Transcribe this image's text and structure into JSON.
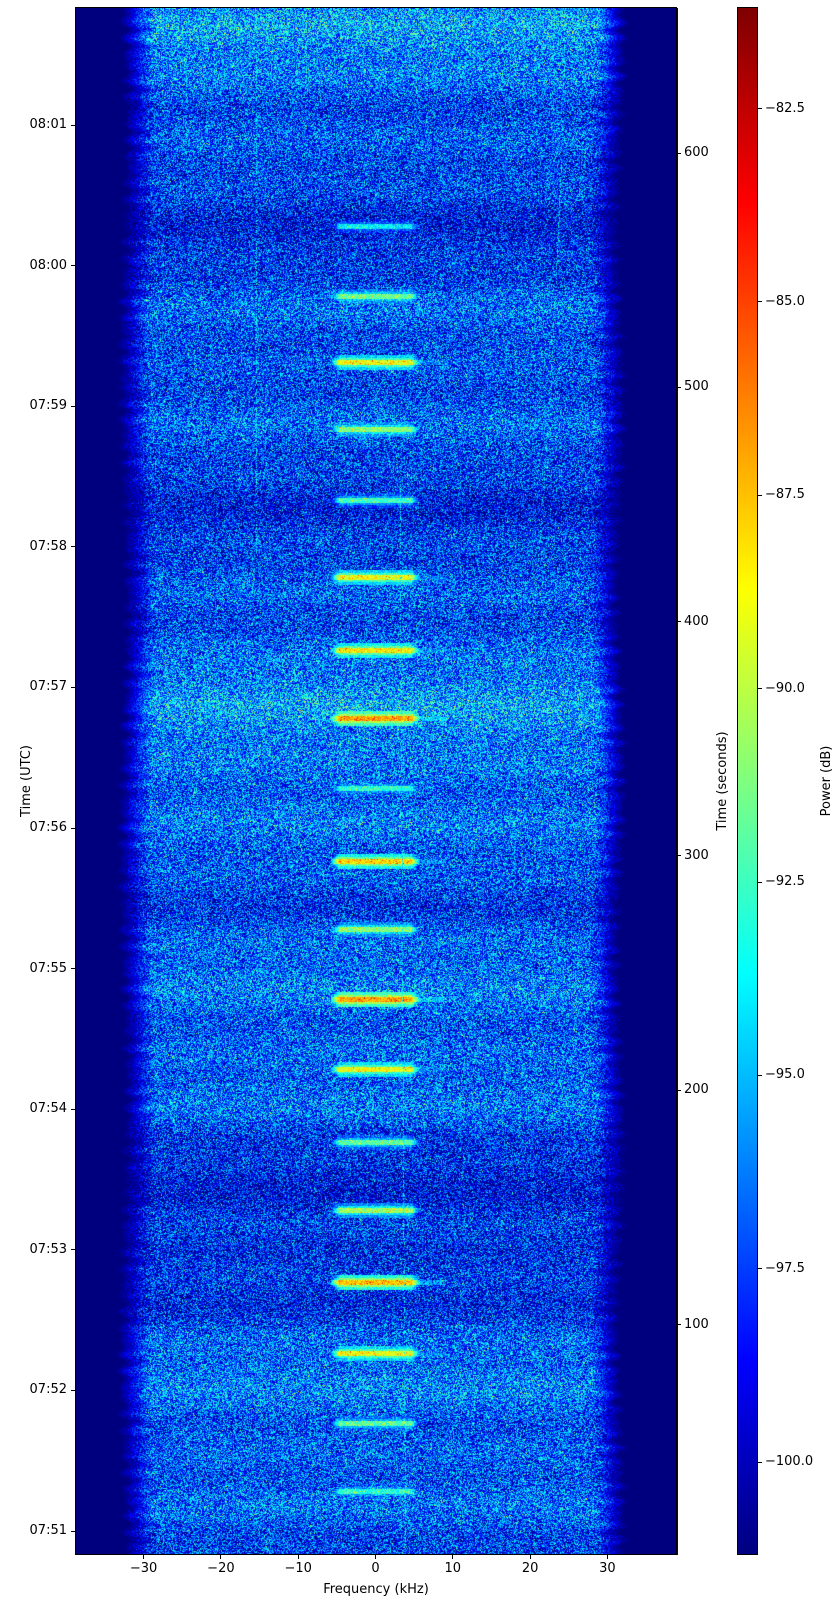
{
  "figure": {
    "xlabel": "Frequency (kHz)",
    "ylabel_left": "Time (UTC)",
    "ylabel_right": "Time (seconds)",
    "colorbar_label": "Power (dB)"
  },
  "chart_data": {
    "type": "heatmap",
    "subtype": "radio-spectrogram-waterfall",
    "xlabel": "Frequency (kHz)",
    "x_ticks_khz": [
      -30,
      -20,
      -10,
      0,
      10,
      20,
      30
    ],
    "x_range_khz": [
      -38.9,
      39.0
    ],
    "y_left_label": "Time (UTC)",
    "y_left_ticks_utc": [
      "08:01",
      "08:00",
      "07:59",
      "07:58",
      "07:57",
      "07:56",
      "07:55",
      "07:54",
      "07:53",
      "07:52",
      "07:51"
    ],
    "y_utc_top": "08:01:50",
    "y_utc_bottom": "07:50:50",
    "y_right_label": "Time (seconds)",
    "y_right_ticks_s": [
      600,
      500,
      400,
      300,
      200,
      100
    ],
    "y_right_range_s": [
      2,
      662
    ],
    "colorbar": {
      "label": "Power (dB)",
      "ticks_db": [
        -82.5,
        -85.0,
        -87.5,
        -90.0,
        -92.5,
        -95.0,
        -97.5,
        -100.0
      ],
      "range_db": [
        -101.2,
        -81.2
      ],
      "colormap": "jet"
    },
    "noise_band_khz": [
      -31,
      31
    ],
    "noise_floor_db": -97.5,
    "background_db": -101.2,
    "bursts_f_khz": [
      -5.9,
      5.5
    ],
    "bursts": [
      {
        "utc": "08:00:17",
        "t_s": 569,
        "peak_db": -92.5
      },
      {
        "utc": "07:59:47",
        "t_s": 539,
        "peak_db": -90.0
      },
      {
        "utc": "07:59:19",
        "t_s": 511,
        "peak_db": -87.5
      },
      {
        "utc": "07:58:50",
        "t_s": 482,
        "peak_db": -89.5
      },
      {
        "utc": "07:58:20",
        "t_s": 452,
        "peak_db": -91.0
      },
      {
        "utc": "07:57:47",
        "t_s": 419,
        "peak_db": -87.5
      },
      {
        "utc": "07:57:16",
        "t_s": 388,
        "peak_db": -87.0
      },
      {
        "utc": "07:56:47",
        "t_s": 359,
        "peak_db": -85.5
      },
      {
        "utc": "07:56:17",
        "t_s": 329,
        "peak_db": -91.5
      },
      {
        "utc": "07:55:46",
        "t_s": 298,
        "peak_db": -86.5
      },
      {
        "utc": "07:55:17",
        "t_s": 269,
        "peak_db": -89.5
      },
      {
        "utc": "07:54:47",
        "t_s": 239,
        "peak_db": -85.5
      },
      {
        "utc": "07:54:17",
        "t_s": 209,
        "peak_db": -87.5
      },
      {
        "utc": "07:53:46",
        "t_s": 178,
        "peak_db": -90.5
      },
      {
        "utc": "07:53:17",
        "t_s": 149,
        "peak_db": -89.0
      },
      {
        "utc": "07:52:46",
        "t_s": 118,
        "peak_db": -86.0
      },
      {
        "utc": "07:52:16",
        "t_s": 88,
        "peak_db": -87.5
      },
      {
        "utc": "07:51:46",
        "t_s": 58,
        "peak_db": -90.5
      },
      {
        "utc": "07:51:17",
        "t_s": 29,
        "peak_db": -91.5
      }
    ],
    "artifacts": [
      {
        "kind": "carrier",
        "f_khz_start": 3.0,
        "f_khz_end": 3.7,
        "t_start_s": 460,
        "t_end_s": 0,
        "level_db": -95.0
      },
      {
        "kind": "carrier-drifting",
        "f_khz_start": 24.3,
        "f_khz_end": 17.7,
        "t_start_s": 655,
        "t_end_s": 300,
        "level_db": -95.0
      },
      {
        "kind": "carrier",
        "f_khz_start": -24.6,
        "f_khz_end": -24.6,
        "t_start_s": 660,
        "t_end_s": 575,
        "level_db": -95.5
      },
      {
        "kind": "carrier",
        "f_khz_start": -15.6,
        "f_khz_end": -15.6,
        "t_start_s": 660,
        "t_end_s": 430,
        "level_db": -95.0
      }
    ]
  }
}
